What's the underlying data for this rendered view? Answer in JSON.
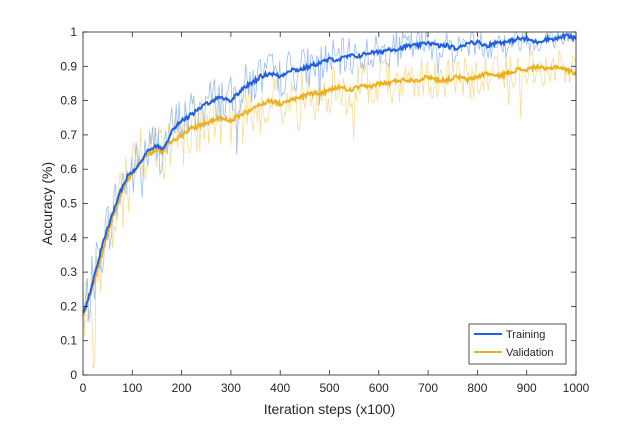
{
  "chart_data": {
    "type": "line",
    "title": "",
    "xlabel": "Iteration steps (x100)",
    "ylabel": "Accuracy (%)",
    "xlim": [
      0,
      1000
    ],
    "ylim": [
      0,
      1
    ],
    "xticks": [
      "0",
      "100",
      "200",
      "300",
      "400",
      "500",
      "600",
      "700",
      "800",
      "900",
      "1000"
    ],
    "yticks": [
      "0",
      "0.1",
      "0.2",
      "0.3",
      "0.4",
      "0.5",
      "0.6",
      "0.7",
      "0.8",
      "0.9",
      "1"
    ],
    "grid": false,
    "legend_position": "bottom-right",
    "series": [
      {
        "name": "Training",
        "color": "#1f5fe0",
        "raw_color": "#9bbcf2",
        "smoothed": [
          [
            0,
            0.18
          ],
          [
            10,
            0.22
          ],
          [
            20,
            0.27
          ],
          [
            30,
            0.33
          ],
          [
            40,
            0.38
          ],
          [
            50,
            0.43
          ],
          [
            60,
            0.47
          ],
          [
            70,
            0.51
          ],
          [
            80,
            0.55
          ],
          [
            90,
            0.58
          ],
          [
            100,
            0.59
          ],
          [
            110,
            0.61
          ],
          [
            120,
            0.63
          ],
          [
            130,
            0.65
          ],
          [
            140,
            0.66
          ],
          [
            150,
            0.67
          ],
          [
            160,
            0.66
          ],
          [
            170,
            0.68
          ],
          [
            180,
            0.71
          ],
          [
            190,
            0.73
          ],
          [
            200,
            0.74
          ],
          [
            220,
            0.76
          ],
          [
            240,
            0.78
          ],
          [
            260,
            0.8
          ],
          [
            280,
            0.81
          ],
          [
            300,
            0.8
          ],
          [
            320,
            0.83
          ],
          [
            340,
            0.85
          ],
          [
            360,
            0.87
          ],
          [
            380,
            0.88
          ],
          [
            400,
            0.87
          ],
          [
            420,
            0.89
          ],
          [
            440,
            0.89
          ],
          [
            460,
            0.9
          ],
          [
            480,
            0.91
          ],
          [
            500,
            0.92
          ],
          [
            520,
            0.92
          ],
          [
            540,
            0.93
          ],
          [
            560,
            0.93
          ],
          [
            580,
            0.94
          ],
          [
            600,
            0.94
          ],
          [
            620,
            0.95
          ],
          [
            640,
            0.95
          ],
          [
            660,
            0.96
          ],
          [
            680,
            0.96
          ],
          [
            700,
            0.97
          ],
          [
            720,
            0.96
          ],
          [
            740,
            0.96
          ],
          [
            760,
            0.95
          ],
          [
            780,
            0.97
          ],
          [
            800,
            0.97
          ],
          [
            820,
            0.96
          ],
          [
            840,
            0.97
          ],
          [
            860,
            0.97
          ],
          [
            880,
            0.98
          ],
          [
            900,
            0.98
          ],
          [
            920,
            0.97
          ],
          [
            940,
            0.98
          ],
          [
            960,
            0.98
          ],
          [
            980,
            0.99
          ],
          [
            1000,
            0.98
          ]
        ]
      },
      {
        "name": "Validation",
        "color": "#edb120",
        "raw_color": "#f6dc94",
        "smoothed": [
          [
            0,
            0.17
          ],
          [
            10,
            0.21
          ],
          [
            20,
            0.26
          ],
          [
            30,
            0.31
          ],
          [
            40,
            0.36
          ],
          [
            50,
            0.41
          ],
          [
            60,
            0.46
          ],
          [
            70,
            0.5
          ],
          [
            80,
            0.54
          ],
          [
            90,
            0.57
          ],
          [
            100,
            0.59
          ],
          [
            110,
            0.61
          ],
          [
            120,
            0.63
          ],
          [
            130,
            0.64
          ],
          [
            140,
            0.65
          ],
          [
            150,
            0.66
          ],
          [
            160,
            0.65
          ],
          [
            170,
            0.67
          ],
          [
            180,
            0.68
          ],
          [
            190,
            0.69
          ],
          [
            200,
            0.7
          ],
          [
            220,
            0.72
          ],
          [
            240,
            0.73
          ],
          [
            260,
            0.74
          ],
          [
            280,
            0.75
          ],
          [
            300,
            0.74
          ],
          [
            320,
            0.76
          ],
          [
            340,
            0.77
          ],
          [
            360,
            0.79
          ],
          [
            380,
            0.8
          ],
          [
            400,
            0.79
          ],
          [
            420,
            0.8
          ],
          [
            440,
            0.81
          ],
          [
            460,
            0.82
          ],
          [
            480,
            0.82
          ],
          [
            500,
            0.83
          ],
          [
            520,
            0.84
          ],
          [
            540,
            0.83
          ],
          [
            560,
            0.84
          ],
          [
            580,
            0.84
          ],
          [
            600,
            0.85
          ],
          [
            620,
            0.85
          ],
          [
            640,
            0.86
          ],
          [
            660,
            0.86
          ],
          [
            680,
            0.86
          ],
          [
            700,
            0.87
          ],
          [
            720,
            0.86
          ],
          [
            740,
            0.86
          ],
          [
            760,
            0.87
          ],
          [
            780,
            0.86
          ],
          [
            800,
            0.87
          ],
          [
            820,
            0.88
          ],
          [
            840,
            0.87
          ],
          [
            860,
            0.88
          ],
          [
            880,
            0.89
          ],
          [
            900,
            0.89
          ],
          [
            920,
            0.9
          ],
          [
            940,
            0.89
          ],
          [
            960,
            0.9
          ],
          [
            980,
            0.89
          ],
          [
            1000,
            0.88
          ]
        ]
      }
    ]
  }
}
